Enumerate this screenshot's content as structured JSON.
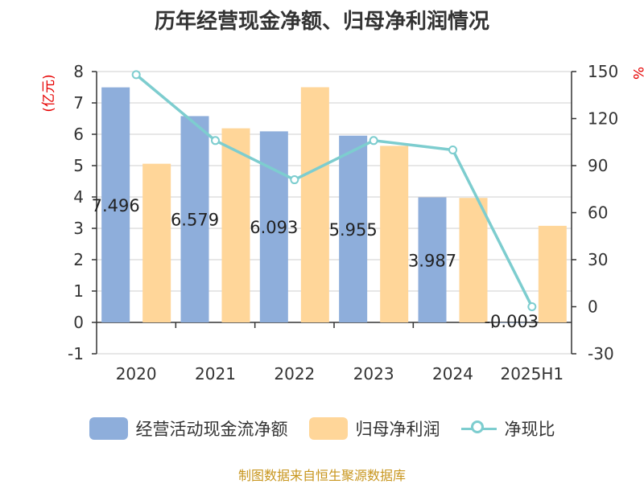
{
  "chart_data": {
    "type": "bar",
    "title": "历年经营现金净额、归母净利润情况",
    "categories": [
      "2020",
      "2021",
      "2022",
      "2023",
      "2024",
      "2025H1"
    ],
    "series": [
      {
        "name": "经营活动现金流净额",
        "type": "bar",
        "axis": "left",
        "color": "#8eaedb",
        "values": [
          7.496,
          6.579,
          6.093,
          5.955,
          3.987,
          -0.003
        ],
        "data_labels": [
          "7.496",
          "6.579",
          "6.093",
          "5.955",
          "3.987",
          "-0.003"
        ]
      },
      {
        "name": "归母净利润",
        "type": "bar",
        "axis": "left",
        "color": "#ffd699",
        "values": [
          5.06,
          6.19,
          7.5,
          5.63,
          3.97,
          3.08
        ]
      },
      {
        "name": "净现比",
        "type": "line",
        "axis": "right",
        "color": "#7dcdcf",
        "values": [
          148,
          106,
          81,
          106,
          100,
          0
        ]
      }
    ],
    "y_left": {
      "label": "(亿元)",
      "range": [
        -1,
        8
      ],
      "ticks": [
        "-1",
        "0",
        "1",
        "2",
        "3",
        "4",
        "5",
        "6",
        "7",
        "8"
      ]
    },
    "y_right": {
      "label": "%",
      "range": [
        -30,
        150
      ],
      "ticks": [
        "-30",
        "0",
        "30",
        "60",
        "90",
        "120",
        "150"
      ]
    },
    "grid": true,
    "legend_position": "bottom",
    "axis_label_color": "#e60000",
    "source": "制图数据来自恒生聚源数据库"
  }
}
